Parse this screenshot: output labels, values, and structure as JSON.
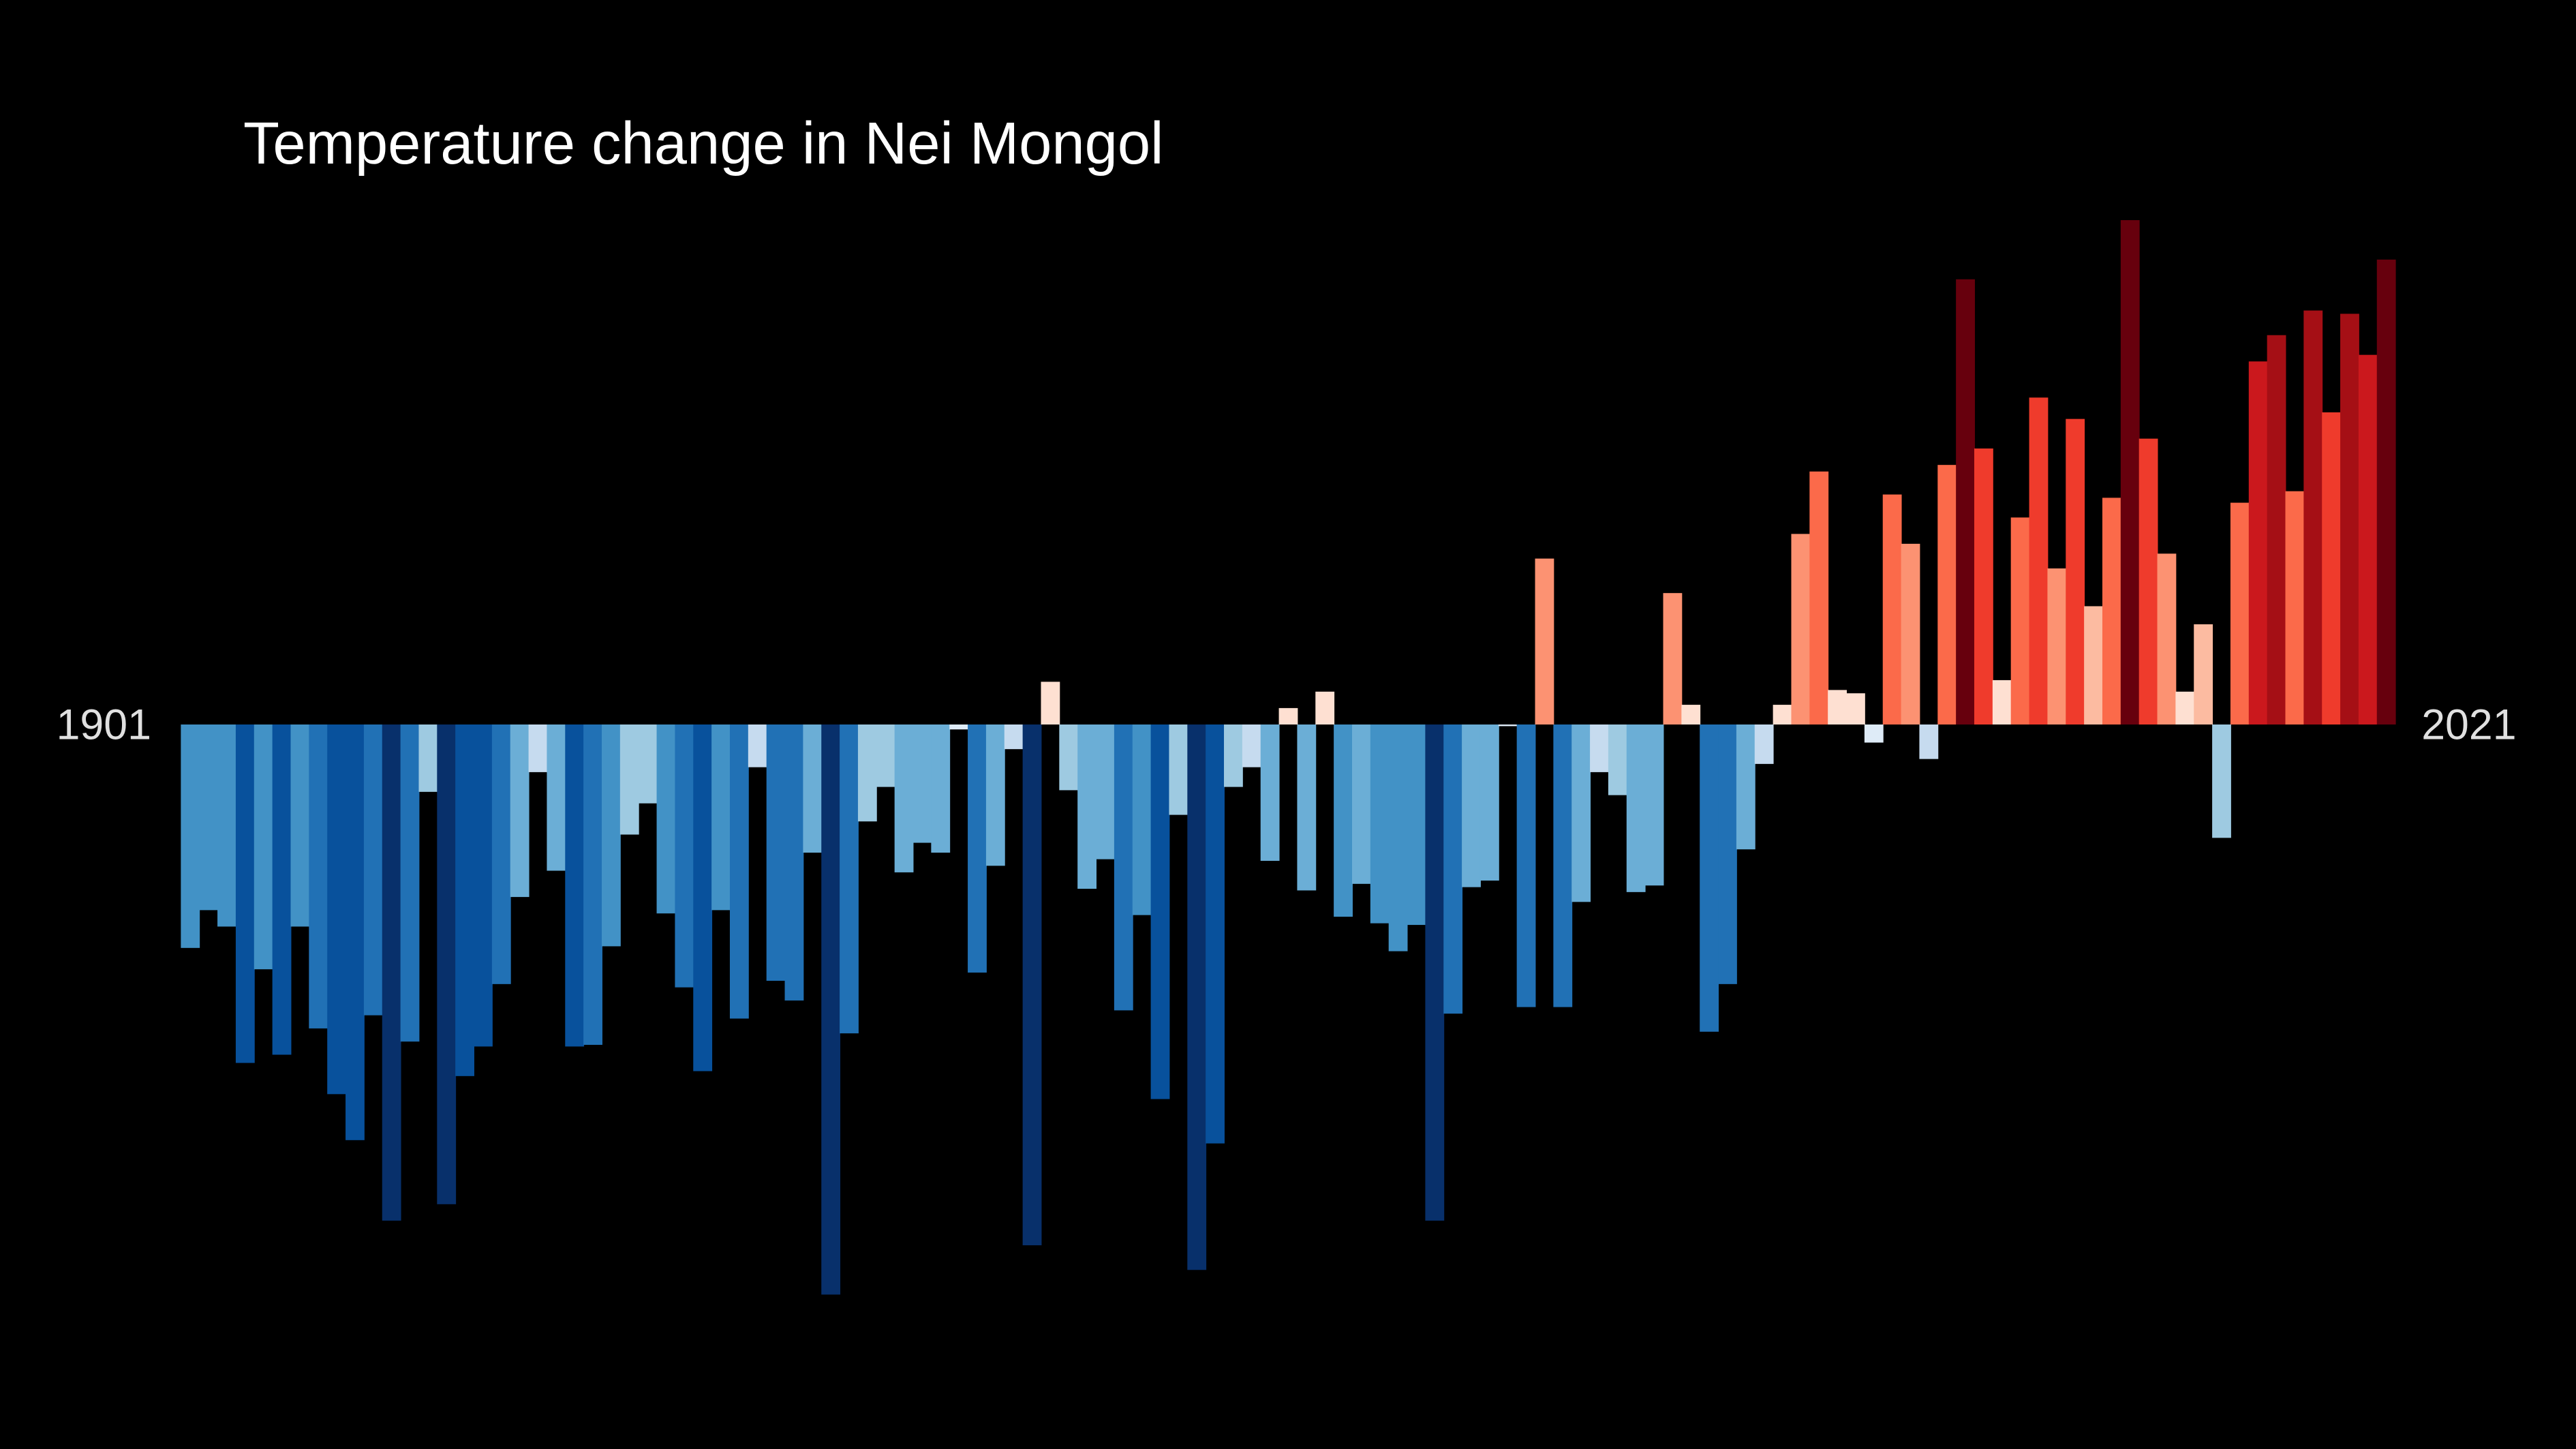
{
  "chart_data": {
    "type": "bar",
    "title": "Temperature change in Nei Mongol",
    "categories": [
      "1901",
      null,
      null,
      null,
      null,
      null,
      null,
      null,
      null,
      null,
      null,
      null,
      null,
      null,
      null,
      null,
      null,
      null,
      null,
      null,
      null,
      null,
      null,
      null,
      null,
      null,
      null,
      null,
      null,
      null,
      null,
      null,
      null,
      null,
      null,
      null,
      null,
      null,
      null,
      null,
      null,
      null,
      null,
      null,
      null,
      null,
      null,
      null,
      null,
      null,
      null,
      null,
      null,
      null,
      null,
      null,
      null,
      null,
      null,
      null,
      null,
      null,
      null,
      null,
      null,
      null,
      null,
      null,
      null,
      null,
      null,
      null,
      null,
      null,
      null,
      null,
      null,
      null,
      null,
      null,
      null,
      null,
      null,
      null,
      null,
      null,
      null,
      null,
      null,
      null,
      null,
      null,
      null,
      null,
      null,
      null,
      null,
      null,
      null,
      null,
      null,
      null,
      null,
      null,
      null,
      null,
      null,
      null,
      null,
      null,
      null,
      null,
      null,
      null,
      null,
      null,
      null,
      null,
      null,
      null,
      "2021"
    ],
    "values": [
      -1.36,
      -1.13,
      -1.23,
      -2.06,
      -1.49,
      -2.01,
      -1.23,
      -1.85,
      -2.25,
      -2.53,
      -1.77,
      -3.02,
      -1.93,
      -0.41,
      -2.92,
      -2.14,
      -1.96,
      -1.58,
      -1.05,
      -0.29,
      -0.89,
      -1.96,
      -1.95,
      -1.35,
      -0.67,
      -0.48,
      -1.15,
      -1.6,
      -2.11,
      -1.13,
      -1.79,
      -0.26,
      -1.56,
      -1.68,
      -0.78,
      -3.47,
      -1.88,
      -0.59,
      -0.38,
      -0.9,
      -0.72,
      -0.78,
      -0.03,
      -1.51,
      -0.86,
      -0.15,
      -3.17,
      0.26,
      -0.4,
      -1.0,
      -0.82,
      -1.74,
      -1.16,
      -2.28,
      -0.55,
      -3.32,
      -2.55,
      -0.38,
      -0.26,
      -0.83,
      0.1,
      -1.01,
      0.2,
      -1.17,
      -0.97,
      -1.21,
      -1.38,
      -1.22,
      -3.02,
      -1.76,
      -0.99,
      -0.95,
      -0.01,
      -1.72,
      1.01,
      -1.72,
      -1.08,
      -0.29,
      -0.43,
      -1.02,
      -0.98,
      0.8,
      0.12,
      -1.87,
      -1.58,
      -0.76,
      -0.24,
      0.12,
      1.16,
      1.54,
      0.21,
      0.19,
      -0.11,
      1.4,
      1.1,
      -0.21,
      1.58,
      2.71,
      1.68,
      0.27,
      1.26,
      1.99,
      0.95,
      1.86,
      0.72,
      1.38,
      3.07,
      1.74,
      1.04,
      0.2,
      0.61,
      -0.69,
      1.35,
      2.21,
      2.37,
      1.42,
      2.52,
      1.9,
      2.5,
      2.25,
      2.83
    ],
    "ylim": [
      -4.41,
      4.41
    ],
    "colormap": [
      [
        -3.0,
        "#08306b"
      ],
      [
        -2.2,
        "#08519c"
      ],
      [
        -1.7,
        "#2171b5"
      ],
      [
        -1.3,
        "#4292c6"
      ],
      [
        -0.9,
        "#6baed6"
      ],
      [
        -0.5,
        "#9ecae1"
      ],
      [
        -0.2,
        "#c6dbef"
      ],
      [
        -0.05,
        "#deebf7"
      ],
      [
        0.1,
        "#fee0d2"
      ],
      [
        0.6,
        "#fcbba1"
      ],
      [
        1.0,
        "#fc9272"
      ],
      [
        1.4,
        "#fb6a4a"
      ],
      [
        1.8,
        "#ef3b2c"
      ],
      [
        2.2,
        "#cb181d"
      ],
      [
        2.5,
        "#a50f15"
      ],
      [
        2.8,
        "#67000d"
      ]
    ],
    "background": "#000000"
  }
}
